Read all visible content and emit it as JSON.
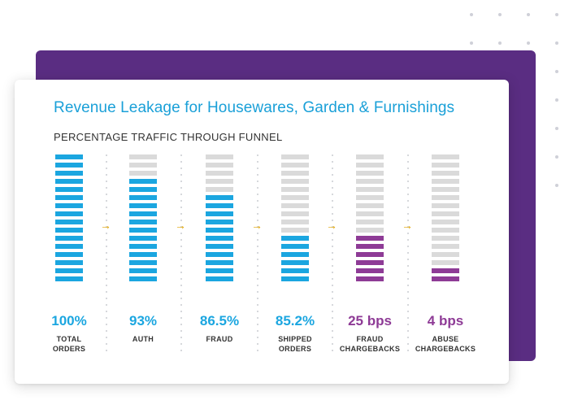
{
  "colors": {
    "purple": "#5a2d82",
    "blue": "#1ba6e0",
    "magenta": "#8e3b96",
    "gray": "#dadada",
    "arrow": "#e0a400",
    "title": "#1aa0d8"
  },
  "chart_data": {
    "type": "bar",
    "title": "Revenue Leakage for Housewares, Garden & Furnishings",
    "subtitle": "PERCENTAGE TRAFFIC THROUGH FUNNEL",
    "total_segments": 16,
    "categories": [
      {
        "label_lines": [
          "TOTAL",
          "ORDERS"
        ],
        "value_label": "100%",
        "filled_segments": 16,
        "color": "blue"
      },
      {
        "label_lines": [
          "AUTH"
        ],
        "value_label": "93%",
        "filled_segments": 13,
        "color": "blue"
      },
      {
        "label_lines": [
          "FRAUD"
        ],
        "value_label": "86.5%",
        "filled_segments": 11,
        "color": "blue"
      },
      {
        "label_lines": [
          "SHIPPED",
          "ORDERS"
        ],
        "value_label": "85.2%",
        "filled_segments": 6,
        "color": "blue"
      },
      {
        "label_lines": [
          "FRAUD",
          "CHARGEBACKS"
        ],
        "value_label": "25 bps",
        "filled_segments": 6,
        "color": "magenta"
      },
      {
        "label_lines": [
          "ABUSE",
          "CHARGEBACKS"
        ],
        "value_label": "4 bps",
        "filled_segments": 2,
        "color": "magenta"
      }
    ]
  }
}
